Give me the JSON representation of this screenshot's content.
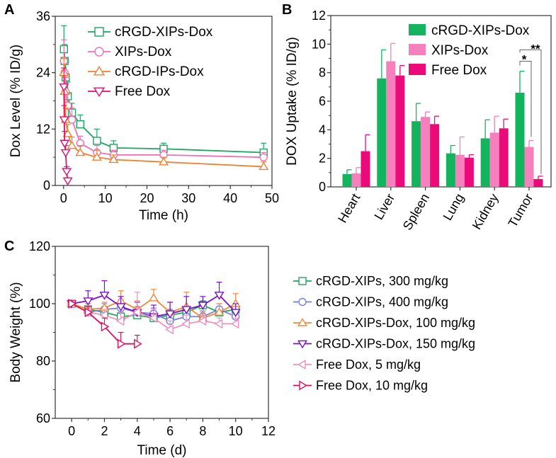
{
  "chart_data": [
    {
      "panel": "A",
      "type": "line",
      "xlabel": "Time (h)",
      "ylabel": "Dox Level (% ID/g)",
      "xlim": [
        -2,
        50
      ],
      "ylim": [
        0,
        36
      ],
      "xticks": [
        0,
        10,
        20,
        30,
        40,
        50
      ],
      "yticks": [
        0,
        12,
        24,
        36
      ],
      "legend_position": "top-right",
      "series": [
        {
          "name": "cRGD-XIPs-Dox",
          "color": "#1aa860",
          "marker": "square",
          "x": [
            0.083,
            0.25,
            0.5,
            1,
            2,
            4,
            8,
            12,
            24,
            48
          ],
          "y": [
            29,
            26.5,
            23,
            19,
            15.5,
            13,
            9.5,
            8,
            7.8,
            7
          ],
          "err": [
            5,
            3.5,
            3.5,
            3,
            2,
            2,
            2.5,
            1.5,
            1.2,
            2
          ]
        },
        {
          "name": "XIPs-Dox",
          "color": "#ee6fb5",
          "marker": "circle",
          "x": [
            0.083,
            0.25,
            0.5,
            1,
            2,
            4,
            8,
            12,
            24,
            48
          ],
          "y": [
            26.5,
            24,
            20,
            17,
            14,
            9,
            7,
            6.5,
            6.5,
            6
          ],
          "err": [
            4.5,
            3,
            3,
            2.5,
            2.5,
            1.5,
            1.5,
            1,
            1,
            1
          ]
        },
        {
          "name": "cRGD-IPs-Dox",
          "color": "#f08030",
          "marker": "triangle-up",
          "x": [
            0.083,
            0.25,
            0.5,
            1,
            2,
            4,
            8,
            12,
            24,
            48
          ],
          "y": [
            24,
            20,
            14,
            11,
            8.5,
            7,
            6,
            5.5,
            5,
            4
          ],
          "err": [
            3,
            3,
            2.5,
            2,
            1.8,
            1.5,
            1.5,
            1,
            1,
            1
          ]
        },
        {
          "name": "Free Dox",
          "color": "#e0106e",
          "marker": "triangle-down",
          "x": [
            0.083,
            0.167,
            0.25,
            0.5,
            0.75,
            1
          ],
          "y": [
            21,
            14,
            9,
            7,
            3,
            1
          ],
          "err": [
            4,
            3,
            2.5,
            1.5,
            1,
            0.6
          ]
        }
      ]
    },
    {
      "panel": "B",
      "type": "bar",
      "ylabel": "DOX Uptake (% ID/g)",
      "ylim": [
        0,
        12
      ],
      "yticks": [
        0,
        2,
        4,
        6,
        8,
        10,
        12
      ],
      "categories": [
        "Heart",
        "Liver",
        "Spleen",
        "Lung",
        "Kidney",
        "Tumor"
      ],
      "legend_position": "top-right",
      "series": [
        {
          "name": "cRGD-XIPs-Dox",
          "color": "#12b45e",
          "values": [
            0.9,
            7.6,
            4.6,
            2.35,
            3.4,
            6.6
          ],
          "err": [
            0.3,
            2.0,
            1.25,
            0.55,
            1.3,
            1.5
          ]
        },
        {
          "name": "XIPs-Dox",
          "color": "#f580bd",
          "values": [
            0.95,
            8.8,
            4.9,
            2.25,
            3.8,
            2.8
          ],
          "err": [
            0.4,
            1.25,
            0.35,
            1.25,
            1.15,
            0.45
          ]
        },
        {
          "name": "Free Dox",
          "color": "#ec0a7a",
          "values": [
            2.5,
            7.8,
            4.4,
            2.05,
            4.1,
            0.55
          ],
          "err": [
            1.15,
            0.7,
            0.55,
            0.2,
            0.65,
            0.2
          ]
        }
      ],
      "annotations": [
        "*",
        "**"
      ]
    },
    {
      "panel": "C",
      "type": "line",
      "xlabel": "Time (d)",
      "ylabel": "Body Weight (%)",
      "xlim": [
        -1,
        12
      ],
      "ylim": [
        60,
        120
      ],
      "xticks": [
        0,
        2,
        4,
        6,
        8,
        10,
        12
      ],
      "yticks": [
        60,
        80,
        100,
        120
      ],
      "legend_position": "right",
      "series": [
        {
          "name": "cRGD-XIPs, 300 mg/kg",
          "color": "#22a65a",
          "marker": "square",
          "x": [
            0,
            1,
            2,
            3,
            4,
            5,
            6,
            7,
            8,
            9,
            10
          ],
          "y": [
            100,
            98,
            97,
            95.5,
            96,
            95,
            96,
            97,
            99.5,
            97,
            98
          ],
          "err": [
            1,
            2,
            2,
            2,
            2,
            2,
            2,
            2,
            1.5,
            2,
            2
          ]
        },
        {
          "name": "cRGD-XIPs, 400 mg/kg",
          "color": "#7a7ee0",
          "marker": "circle",
          "x": [
            0,
            1,
            2,
            3,
            4,
            5,
            6,
            7,
            8,
            9,
            10
          ],
          "y": [
            100,
            97,
            98,
            98.5,
            97,
            96.5,
            94,
            95.5,
            95.5,
            98,
            95.5
          ],
          "err": [
            1,
            2,
            2,
            3,
            2,
            2,
            3,
            2,
            2,
            2,
            2
          ]
        },
        {
          "name": "cRGD-XIPs-Dox, 100 mg/kg",
          "color": "#f0883a",
          "marker": "triangle-up",
          "x": [
            0,
            1,
            2,
            3,
            4,
            5,
            6,
            7,
            8,
            9,
            10
          ],
          "y": [
            100,
            98,
            98.5,
            101,
            98,
            102,
            97,
            99,
            95,
            97,
            100
          ],
          "err": [
            1,
            2,
            2,
            3.5,
            3,
            3,
            3.5,
            5,
            2,
            3,
            3.5
          ]
        },
        {
          "name": "cRGD-XIPs-Dox, 150 mg/kg",
          "color": "#7a10c8",
          "marker": "triangle-down",
          "x": [
            0,
            1,
            2,
            3,
            4,
            5,
            6,
            7,
            8,
            9,
            10
          ],
          "y": [
            100,
            101,
            103,
            99,
            97,
            95.5,
            96.5,
            98,
            99.5,
            103,
            97
          ],
          "err": [
            1,
            3.5,
            5,
            3.5,
            3.5,
            4,
            4,
            4.5,
            3,
            4.5,
            3
          ]
        },
        {
          "name": "Free Dox, 5 mg/kg",
          "color": "#ee90c0",
          "marker": "triangle-left",
          "x": [
            0,
            1,
            2,
            3,
            4,
            5,
            6,
            7,
            8,
            9,
            10
          ],
          "y": [
            100,
            97,
            96,
            94,
            97,
            95,
            91,
            93,
            94,
            93,
            93
          ],
          "err": [
            1,
            2,
            2,
            3,
            7,
            3,
            3,
            3,
            2,
            2,
            2
          ]
        },
        {
          "name": "Free Dox, 10 mg/kg",
          "color": "#e0105e",
          "marker": "triangle-right",
          "x": [
            0,
            1,
            2,
            3,
            4
          ],
          "y": [
            100,
            97,
            92,
            86,
            86
          ],
          "err": [
            1,
            2,
            3,
            4,
            3
          ]
        }
      ]
    }
  ],
  "panels": {
    "a": "A",
    "b": "B",
    "c": "C"
  }
}
